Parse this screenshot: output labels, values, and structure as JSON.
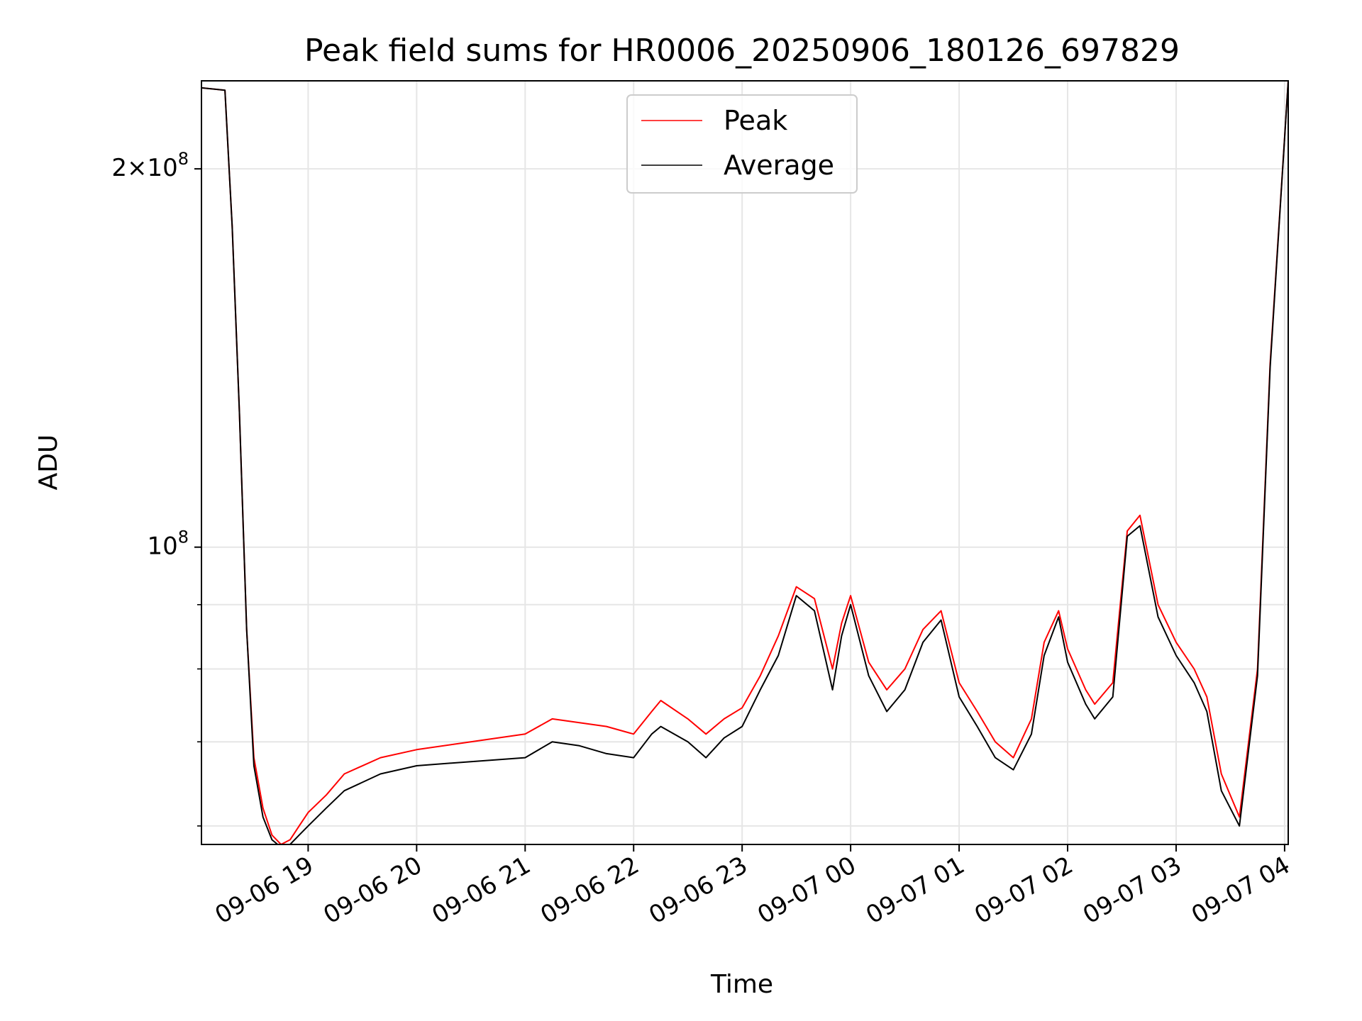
{
  "chart_data": {
    "type": "line",
    "title": "Peak field sums for HR0006_20250906_180126_697829",
    "xlabel": "Time",
    "ylabel": "ADU",
    "yscale": "log",
    "xlim": [
      "2025-09-06 18:01",
      "2025-09-07 04:02"
    ],
    "ylim": [
      58000000,
      235000000
    ],
    "grid": true,
    "legend_position": "top-center",
    "x_ticks": [
      "09-06 19",
      "09-06 20",
      "09-06 21",
      "09-06 22",
      "09-06 23",
      "09-07 00",
      "09-07 01",
      "09-07 02",
      "09-07 03",
      "09-07 04"
    ],
    "y_ticks": [
      {
        "label_base": "2×10",
        "label_exp": "8",
        "value": 200000000
      },
      {
        "label_base": "10",
        "label_exp": "8",
        "value": 100000000
      }
    ],
    "y_minor_ticks": [
      60000000,
      70000000,
      80000000,
      90000000
    ],
    "x": [
      "2025-09-06 18:01",
      "2025-09-06 18:14",
      "2025-09-06 18:18",
      "2025-09-06 18:22",
      "2025-09-06 18:26",
      "2025-09-06 18:30",
      "2025-09-06 18:35",
      "2025-09-06 18:40",
      "2025-09-06 18:45",
      "2025-09-06 18:50",
      "2025-09-06 18:55",
      "2025-09-06 19:00",
      "2025-09-06 19:10",
      "2025-09-06 19:20",
      "2025-09-06 19:40",
      "2025-09-06 20:00",
      "2025-09-06 20:30",
      "2025-09-06 21:00",
      "2025-09-06 21:15",
      "2025-09-06 21:30",
      "2025-09-06 21:45",
      "2025-09-06 22:00",
      "2025-09-06 22:10",
      "2025-09-06 22:15",
      "2025-09-06 22:30",
      "2025-09-06 22:40",
      "2025-09-06 22:50",
      "2025-09-06 23:00",
      "2025-09-06 23:10",
      "2025-09-06 23:20",
      "2025-09-06 23:30",
      "2025-09-06 23:40",
      "2025-09-06 23:50",
      "2025-09-06 23:55",
      "2025-09-07 00:00",
      "2025-09-07 00:10",
      "2025-09-07 00:20",
      "2025-09-07 00:30",
      "2025-09-07 00:40",
      "2025-09-07 00:50",
      "2025-09-07 01:00",
      "2025-09-07 01:10",
      "2025-09-07 01:20",
      "2025-09-07 01:30",
      "2025-09-07 01:40",
      "2025-09-07 01:47",
      "2025-09-07 01:55",
      "2025-09-07 02:00",
      "2025-09-07 02:10",
      "2025-09-07 02:15",
      "2025-09-07 02:25",
      "2025-09-07 02:33",
      "2025-09-07 02:40",
      "2025-09-07 02:50",
      "2025-09-07 03:00",
      "2025-09-07 03:10",
      "2025-09-07 03:17",
      "2025-09-07 03:25",
      "2025-09-07 03:35",
      "2025-09-07 03:45",
      "2025-09-07 03:52",
      "2025-09-07 04:02"
    ],
    "series": [
      {
        "name": "Peak",
        "color": "#ff0000",
        "values": [
          232000000,
          231000000,
          180000000,
          128000000,
          86000000,
          68000000,
          62000000,
          59000000,
          58000000,
          58500000,
          60000000,
          61500000,
          63500000,
          66000000,
          68000000,
          69000000,
          70000000,
          71000000,
          73000000,
          72500000,
          72000000,
          71000000,
          74000000,
          75500000,
          73000000,
          71000000,
          73000000,
          74500000,
          79000000,
          85000000,
          93000000,
          91000000,
          80000000,
          87000000,
          91500000,
          81000000,
          77000000,
          80000000,
          86000000,
          89000000,
          78000000,
          74000000,
          70000000,
          68000000,
          73000000,
          84000000,
          89000000,
          83000000,
          77000000,
          75000000,
          78000000,
          103000000,
          106000000,
          90000000,
          84000000,
          80000000,
          76000000,
          66000000,
          61000000,
          80000000,
          140000000,
          235000000
        ]
      },
      {
        "name": "Average",
        "color": "#000000",
        "values": [
          232000000,
          231000000,
          180000000,
          128000000,
          86000000,
          67000000,
          61000000,
          58500000,
          57700000,
          58000000,
          59000000,
          60000000,
          62000000,
          64000000,
          66000000,
          67000000,
          67500000,
          68000000,
          70000000,
          69500000,
          68500000,
          68000000,
          71000000,
          72000000,
          70000000,
          68000000,
          70500000,
          72000000,
          77000000,
          82000000,
          91500000,
          89000000,
          77000000,
          85000000,
          90000000,
          79000000,
          74000000,
          77000000,
          84000000,
          87500000,
          76000000,
          72000000,
          68000000,
          66500000,
          71000000,
          82000000,
          88000000,
          81000000,
          75000000,
          73000000,
          76000000,
          102000000,
          104000000,
          88000000,
          82000000,
          78000000,
          74000000,
          64000000,
          60000000,
          79000000,
          139000000,
          235000000
        ]
      }
    ]
  }
}
